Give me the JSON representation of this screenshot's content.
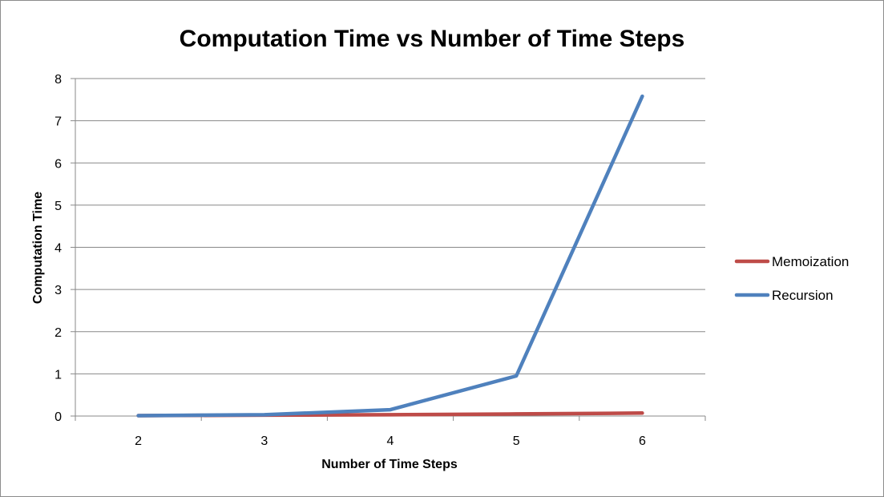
{
  "chart_data": {
    "type": "line",
    "title": "Computation Time vs Number of Time Steps",
    "xlabel": "Number of Time Steps",
    "ylabel": "Computation Time",
    "x": [
      2,
      3,
      4,
      5,
      6
    ],
    "ylim": [
      0,
      8
    ],
    "yticks": [
      0,
      1,
      2,
      3,
      4,
      5,
      6,
      7,
      8
    ],
    "grid": true,
    "legend_position": "right",
    "series": [
      {
        "name": "Memoization",
        "color": "#be4b48",
        "values": [
          0.01,
          0.02,
          0.03,
          0.05,
          0.07
        ]
      },
      {
        "name": "Recursion",
        "color": "#4f81bd",
        "values": [
          0.01,
          0.03,
          0.15,
          0.95,
          7.58
        ]
      }
    ]
  }
}
